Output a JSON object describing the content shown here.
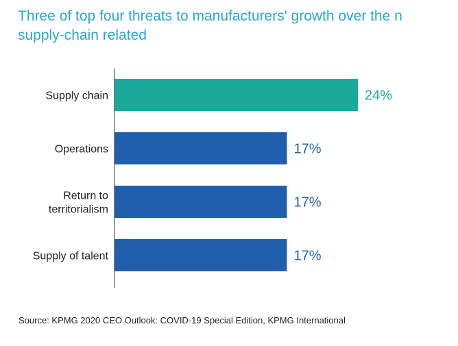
{
  "title_lines": [
    "Three of top four threats to manufacturers' growth over the n",
    "supply-chain related"
  ],
  "source": "Source: KPMG 2020  CEO Outlook: COVID-19 Special Edition, KPMG International",
  "colors": {
    "highlight": "#1aaa9c",
    "bar": "#1f5fae",
    "highlight_label": "#1aaa9c",
    "label": "#1f5fae",
    "axis": "#333333",
    "category_text": "#222222"
  },
  "chart_data": {
    "type": "bar",
    "orientation": "horizontal",
    "categories": [
      [
        "Supply chain"
      ],
      [
        "Operations"
      ],
      [
        "Return to",
        "territorialism"
      ],
      [
        "Supply of talent"
      ]
    ],
    "values": [
      24,
      17,
      17,
      17
    ],
    "value_labels": [
      "24%",
      "17%",
      "17%",
      "17%"
    ],
    "highlight_index": 0,
    "xlim": [
      0,
      30
    ]
  }
}
